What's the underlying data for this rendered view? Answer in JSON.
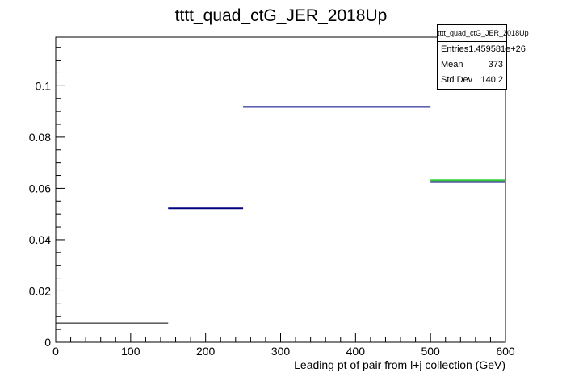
{
  "chart_data": {
    "type": "bar",
    "title": "tttt_quad_ctG_JER_2018Up",
    "xlabel": "Leading pt of pair from l+j collection (GeV)",
    "ylabel": "",
    "xlim": [
      0,
      600
    ],
    "ylim": [
      0,
      0.119
    ],
    "x_ticks": [
      0,
      100,
      200,
      300,
      400,
      500,
      600
    ],
    "y_ticks": [
      0,
      0.02,
      0.04,
      0.06,
      0.08,
      0.1
    ],
    "y_tick_labels": [
      "0",
      "0.02",
      "0.04",
      "0.06",
      "0.08",
      "0.1"
    ],
    "grid": false,
    "series": [
      {
        "color": "#000080",
        "bins": [
          {
            "x0": 0,
            "x1": 150,
            "y": 0.0075,
            "color": "#000000"
          },
          {
            "x0": 150,
            "x1": 250,
            "y": 0.0522
          },
          {
            "x0": 250,
            "x1": 500,
            "y": 0.0918
          },
          {
            "x0": 500,
            "x1": 600,
            "y": 0.0625
          }
        ]
      },
      {
        "color": "#33cc33",
        "bins": [
          {
            "x0": 500,
            "x1": 600,
            "y": 0.0632
          }
        ]
      }
    ]
  },
  "stats": {
    "title": "tttt_quad_ctG_JER_2018Up",
    "rows": [
      {
        "label": "Entries",
        "value": "1.459581e+26"
      },
      {
        "label": "Mean",
        "value": "373"
      },
      {
        "label": "Std Dev",
        "value": "140.2"
      }
    ]
  }
}
